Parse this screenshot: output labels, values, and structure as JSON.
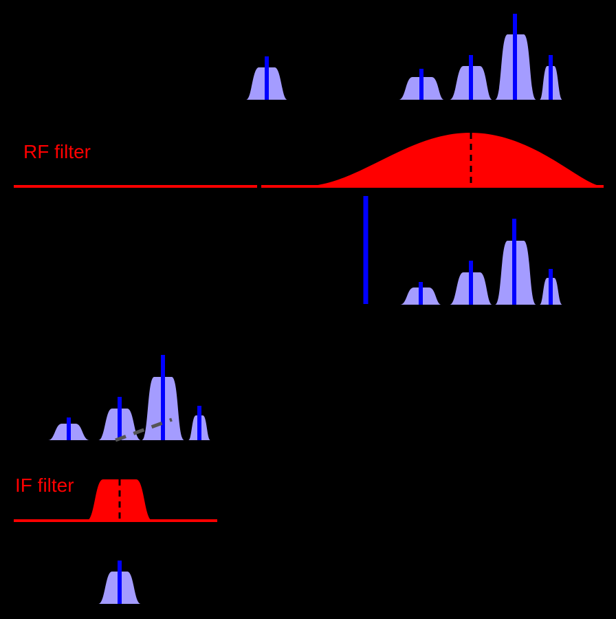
{
  "rf_filter": {
    "label": "RF filter",
    "color": "#ff0000"
  },
  "if_filter": {
    "label": "IF filter",
    "color": "#ff0000"
  },
  "colors": {
    "background": "#000000",
    "signal_lobe": "#a49cff",
    "carrier": "#0000ff",
    "filter": "#ff0000",
    "filter_center": "#000000"
  },
  "stages": [
    {
      "name": "input-spectrum",
      "signals": 5
    },
    {
      "name": "rf-filter-response"
    },
    {
      "name": "rf-filtered-spectrum-with-lo",
      "signals": 4,
      "local_oscillator": true
    },
    {
      "name": "if-shifted-spectrum",
      "signals": 4
    },
    {
      "name": "if-filter-response"
    },
    {
      "name": "output-signal",
      "signals": 1
    }
  ]
}
